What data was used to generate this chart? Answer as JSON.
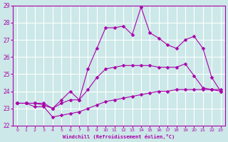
{
  "xlabel": "Windchill (Refroidissement éolien,°C)",
  "xlim": [
    -0.5,
    23.5
  ],
  "ylim": [
    22,
    29
  ],
  "yticks": [
    22,
    23,
    24,
    25,
    26,
    27,
    28,
    29
  ],
  "xticks": [
    0,
    1,
    2,
    3,
    4,
    5,
    6,
    7,
    8,
    9,
    10,
    11,
    12,
    13,
    14,
    15,
    16,
    17,
    18,
    19,
    20,
    21,
    22,
    23
  ],
  "bg_color": "#cce8e8",
  "line_color": "#aa00aa",
  "grid_color": "#ffffff",
  "series": [
    {
      "x": [
        0,
        1,
        2,
        3,
        4,
        5,
        6,
        7,
        8,
        9,
        10,
        11,
        12,
        13,
        14,
        15,
        16,
        17,
        18,
        19,
        20,
        21,
        22,
        23
      ],
      "y": [
        23.3,
        23.3,
        23.1,
        23.1,
        22.5,
        22.6,
        22.7,
        22.8,
        23.0,
        23.2,
        23.4,
        23.5,
        23.6,
        23.7,
        23.8,
        23.9,
        24.0,
        24.0,
        24.1,
        24.1,
        24.1,
        24.1,
        24.1,
        24.0
      ]
    },
    {
      "x": [
        0,
        1,
        2,
        3,
        4,
        5,
        6,
        7,
        8,
        9,
        10,
        11,
        12,
        13,
        14,
        15,
        16,
        17,
        18,
        19,
        20,
        21,
        22,
        23
      ],
      "y": [
        23.3,
        23.3,
        23.3,
        23.3,
        23.0,
        23.3,
        23.5,
        23.5,
        24.1,
        24.8,
        25.3,
        25.4,
        25.5,
        25.5,
        25.5,
        25.5,
        25.4,
        25.4,
        25.4,
        25.6,
        24.9,
        24.2,
        24.1,
        24.1
      ]
    },
    {
      "x": [
        0,
        1,
        2,
        3,
        4,
        5,
        6,
        7,
        8,
        9,
        10,
        11,
        12,
        13,
        14,
        15,
        16,
        17,
        18,
        19,
        20,
        21,
        22,
        23
      ],
      "y": [
        23.3,
        23.3,
        23.3,
        23.2,
        23.0,
        23.5,
        24.0,
        23.5,
        25.3,
        26.5,
        27.7,
        27.7,
        27.8,
        27.3,
        28.9,
        27.4,
        27.1,
        26.7,
        26.5,
        27.0,
        27.2,
        26.5,
        24.8,
        24.0
      ]
    }
  ]
}
